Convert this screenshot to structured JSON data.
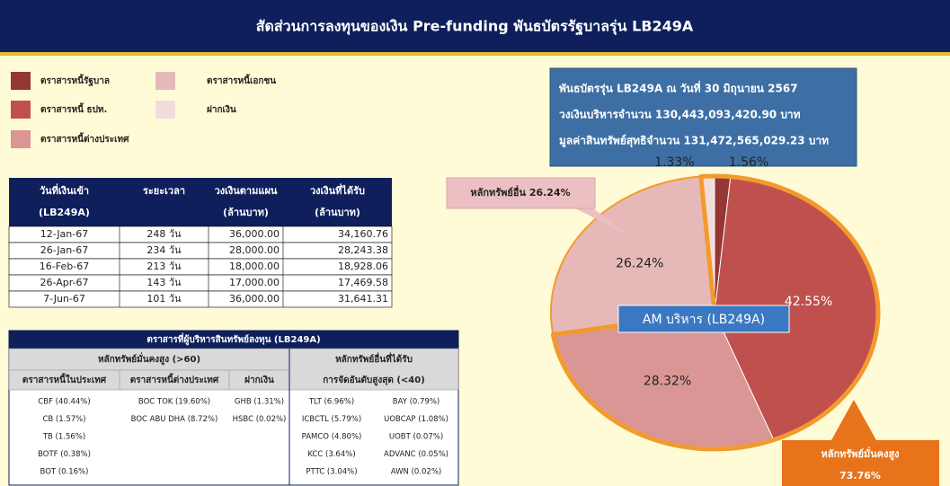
{
  "header": {
    "title": "สัดส่วนการลงทุนของเงิน Pre-funding พันธบัตรรัฐบาลรุ่น LB249A"
  },
  "info_box": {
    "lines": [
      "พันธบัตรรุ่น LB249A ณ วันที่ 30 มิถุนายน 2567",
      "วงเงินบริหารจำนวน 130,443,093,420.90 บาท",
      "มูลค่าสินทรัพย์สุทธิจำนวน 131,472,565,029.23 บาท"
    ]
  },
  "chart_data": {
    "type": "pie",
    "categories": [
      "ตราสารหนี้รัฐบาล",
      "ตราสารหนี้ ธปท.",
      "ตราสารหนี้ต่างประเทศ",
      "ตราสารหนี้เอกชน",
      "ฝากเงิน"
    ],
    "values": [
      1.56,
      42.55,
      28.32,
      26.24,
      1.33
    ],
    "value_labels": [
      "1.56%",
      "42.55%",
      "28.32%",
      "26.24%",
      "1.33%"
    ],
    "colors": [
      "#953735",
      "#c0504d",
      "#d99694",
      "#e6b9b8",
      "#f2dcdb"
    ],
    "center_label": "AM บริหาร (LB249A)",
    "annotations": [
      "หลักทรัพย์อื่น 26.24%",
      "หลักทรัพย์มั่นคงสูง",
      "73.76%"
    ]
  },
  "table1": {
    "header": [
      [
        "วันที่เงินเข้า",
        "(LB249A)"
      ],
      [
        "ระยะเวลา"
      ],
      [
        "วงเงินตามแผน",
        "(ล้านบาท)"
      ],
      [
        "วงเงินที่ได้รับ",
        "(ล้านบาท)"
      ]
    ],
    "rows": [
      [
        "12-Jan-67",
        "248 วัน",
        "36,000.00",
        "34,160.76"
      ],
      [
        "26-Jan-67",
        "234 วัน",
        "28,000.00",
        "28,243.38"
      ],
      [
        "16-Feb-67",
        "213 วัน",
        "18,000.00",
        "18,928.06"
      ],
      [
        "26-Apr-67",
        "143 วัน",
        "17,000.00",
        "17,469.58"
      ],
      [
        "7-Jun-67",
        "101 วัน",
        "36,000.00",
        "31,641.31"
      ]
    ]
  },
  "table2": {
    "title": "ตราสารที่ผู้บริหารสินทรัพย์ลงทุน (LB249A)",
    "groups": [
      [
        "หลักทรัพย์มั่นคงสูง (>60)"
      ],
      [
        "หลักทรัพย์อื่นที่ได้รับ",
        "การจัดอันดับสูงสุด (<40)"
      ]
    ],
    "subheaders": [
      "ตราสารหนี้ในประเทศ",
      "ตราสารหนี้ต่างประเทศ",
      "ฝากเงิน"
    ],
    "rows": [
      [
        "CBF (40.44%)",
        "BOC TOK (19.60%)",
        "GHB (1.31%)",
        "TLT (6.96%)",
        "BAY (0.79%)"
      ],
      [
        "CB (1.57%)",
        "BOC ABU DHA (8.72%)",
        "HSBC (0.02%)",
        "ICBCTL (5.79%)",
        "UOBCAP (1.08%)"
      ],
      [
        "TB (1.56%)",
        null,
        null,
        "PAMCO (4.80%)",
        "UOBT (0.07%)"
      ],
      [
        "BOTF (0.38%)",
        null,
        null,
        "KCC (3.64%)",
        "ADVANC (0.05%)"
      ],
      [
        "BOT (0.16%)",
        null,
        null,
        "PTTC (3.04%)",
        "AWN (0.02%)"
      ]
    ]
  }
}
